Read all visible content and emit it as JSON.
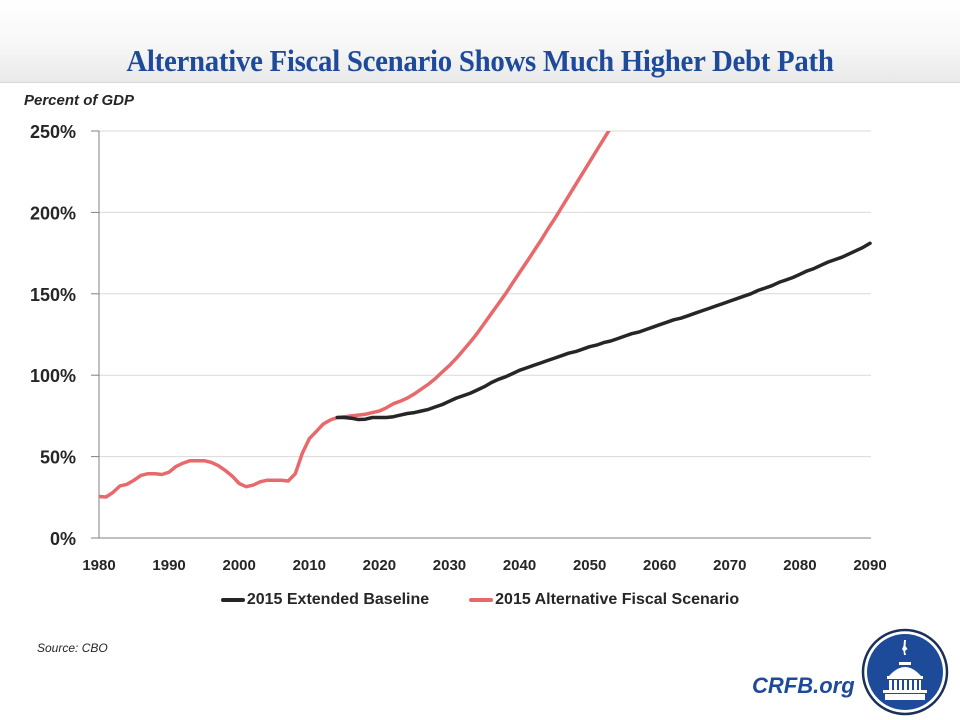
{
  "header": {
    "title": "Alternative Fiscal Scenario Shows Much Higher Debt Path"
  },
  "footer": {
    "source": "Source: CBO",
    "brand": "CRFB.org",
    "logo_icon": "capitol-dome-logo-icon"
  },
  "colors": {
    "title": "#1e4a9a",
    "baseline": "#262626",
    "alternative": "#e8696b",
    "grid": "#d9d9d9",
    "axis": "#808080",
    "logo_bg": "#1e4a9a"
  },
  "chart_data": {
    "type": "line",
    "title": "Alternative Fiscal Scenario Shows Much Higher Debt Path",
    "xlabel": "",
    "ylabel": "Percent of GDP",
    "xlim": [
      1980,
      2090
    ],
    "ylim": [
      0,
      250
    ],
    "grid": true,
    "legend_position": "bottom",
    "x_ticks": [
      1980,
      1990,
      2000,
      2010,
      2020,
      2030,
      2040,
      2050,
      2060,
      2070,
      2080,
      2090
    ],
    "x_tick_labels": [
      "1980",
      "1990",
      "2000",
      "2010",
      "2020",
      "2030",
      "2040",
      "2050",
      "2060",
      "2070",
      "2080",
      "2090"
    ],
    "y_ticks": [
      0,
      50,
      100,
      150,
      200,
      250
    ],
    "y_tick_labels": [
      "0%",
      "50%",
      "100%",
      "150%",
      "200%",
      "250%"
    ],
    "series": [
      {
        "name": "2015 Extended Baseline",
        "color": "#262626",
        "x": [
          2014,
          2015,
          2016,
          2017,
          2018,
          2019,
          2020,
          2021,
          2022,
          2023,
          2024,
          2025,
          2026,
          2027,
          2028,
          2029,
          2030,
          2031,
          2032,
          2033,
          2034,
          2035,
          2036,
          2037,
          2038,
          2039,
          2040,
          2041,
          2042,
          2043,
          2044,
          2045,
          2046,
          2047,
          2048,
          2049,
          2050,
          2051,
          2052,
          2053,
          2054,
          2055,
          2056,
          2057,
          2058,
          2059,
          2060,
          2061,
          2062,
          2063,
          2064,
          2065,
          2066,
          2067,
          2068,
          2069,
          2070,
          2071,
          2072,
          2073,
          2074,
          2075,
          2076,
          2077,
          2078,
          2079,
          2080,
          2081,
          2082,
          2083,
          2084,
          2085,
          2086,
          2087,
          2088,
          2089,
          2090
        ],
        "values": [
          74,
          74,
          73.6,
          72.8,
          73,
          74,
          74,
          74,
          74.5,
          75.5,
          76.5,
          77,
          78,
          79,
          80.5,
          82,
          84,
          86,
          87.5,
          89,
          91,
          93,
          95.5,
          97.5,
          99,
          101,
          103,
          104.5,
          106,
          107.5,
          109,
          110.5,
          112,
          113.5,
          114.5,
          116,
          117.5,
          118.5,
          120,
          121,
          122.5,
          124,
          125.5,
          126.5,
          128,
          129.5,
          131,
          132.5,
          134,
          135,
          136.5,
          138,
          139.5,
          141,
          142.5,
          144,
          145.5,
          147,
          148.5,
          150,
          152,
          153.5,
          155,
          157,
          158.5,
          160,
          162,
          164,
          165.5,
          167.5,
          169.5,
          171,
          172.5,
          174.5,
          176.5,
          178.5,
          181
        ]
      },
      {
        "name": "2015 Alternative Fiscal Scenario",
        "color": "#e8696b",
        "x": [
          1980,
          1981,
          1982,
          1983,
          1984,
          1985,
          1986,
          1987,
          1988,
          1989,
          1990,
          1991,
          1992,
          1993,
          1994,
          1995,
          1996,
          1997,
          1998,
          1999,
          2000,
          2001,
          2002,
          2003,
          2004,
          2005,
          2006,
          2007,
          2008,
          2009,
          2010,
          2011,
          2012,
          2013,
          2014,
          2015,
          2016,
          2017,
          2018,
          2019,
          2020,
          2021,
          2022,
          2023,
          2024,
          2025,
          2026,
          2027,
          2028,
          2029,
          2030,
          2031,
          2032,
          2033,
          2034,
          2035,
          2036,
          2037,
          2038,
          2039,
          2040,
          2041,
          2042,
          2043,
          2044,
          2045,
          2046,
          2047,
          2048,
          2049,
          2050,
          2051,
          2052,
          2053,
          2054
        ],
        "values": [
          25.5,
          25.2,
          28,
          32,
          33,
          35.5,
          38.5,
          39.5,
          39.5,
          39,
          40.5,
          44,
          46,
          47.5,
          47.5,
          47.5,
          46.5,
          44.5,
          41.5,
          38,
          33.5,
          31.5,
          32.5,
          34.5,
          35.5,
          35.5,
          35.5,
          35,
          39.5,
          52,
          61,
          65.5,
          70,
          72.5,
          74,
          74.5,
          75,
          75.5,
          76,
          77,
          78,
          80,
          82.5,
          84,
          86,
          88.5,
          91.5,
          94.5,
          98,
          102,
          106,
          110.5,
          115.5,
          120.5,
          126,
          132,
          138,
          144,
          150,
          156.5,
          163,
          169.5,
          176,
          182.5,
          189.5,
          196,
          203,
          210,
          217,
          224,
          231,
          238,
          245,
          252,
          259
        ]
      }
    ]
  }
}
